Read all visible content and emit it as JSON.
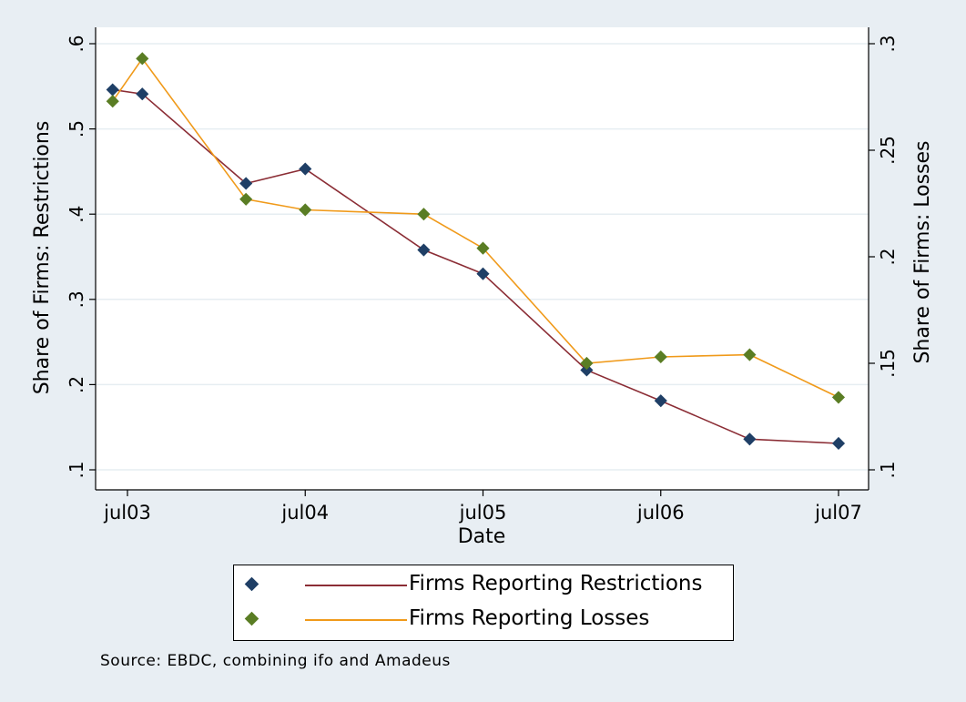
{
  "chart_data": {
    "type": "line",
    "xlabel": "Date",
    "ylabel_left": "Share of Firms: Restrictions",
    "ylabel_right": "Share of Firms: Losses",
    "x_ticks": [
      {
        "label": "jul03",
        "t": 0
      },
      {
        "label": "jul04",
        "t": 12
      },
      {
        "label": "jul05",
        "t": 24
      },
      {
        "label": "jul06",
        "t": 36
      },
      {
        "label": "jul07",
        "t": 48
      }
    ],
    "x_range": [
      0,
      48
    ],
    "y_left": {
      "range": [
        0.1,
        0.6
      ],
      "ticks": [
        ".1",
        ".2",
        ".3",
        ".4",
        ".5",
        ".6"
      ],
      "tick_values": [
        0.1,
        0.2,
        0.3,
        0.4,
        0.5,
        0.6
      ]
    },
    "y_right": {
      "range": [
        0.1,
        0.3
      ],
      "ticks": [
        ".1",
        ".15",
        ".2",
        ".25",
        ".3"
      ],
      "tick_values": [
        0.1,
        0.15,
        0.2,
        0.25,
        0.3
      ]
    },
    "grid": true,
    "series": [
      {
        "name": "Firms Reporting Restrictions",
        "axis": "left",
        "color": "#8b2d35",
        "marker_color": "#1f3f66",
        "x": [
          -1,
          1,
          8,
          12,
          20,
          24,
          31,
          36,
          42,
          48
        ],
        "y": [
          0.546,
          0.541,
          0.436,
          0.453,
          0.358,
          0.33,
          0.217,
          0.181,
          0.136,
          0.131
        ]
      },
      {
        "name": "Firms Reporting Losses",
        "axis": "right",
        "color": "#f09a1a",
        "marker_color": "#5a7d24",
        "x": [
          -1,
          1,
          8,
          12,
          20,
          24,
          31,
          36,
          42,
          48
        ],
        "y": [
          0.273,
          0.293,
          0.227,
          0.222,
          0.22,
          0.204,
          0.15,
          0.153,
          0.154,
          0.134
        ]
      }
    ]
  },
  "legend": {
    "placement": "bottom",
    "items": [
      {
        "label": "Firms Reporting Restrictions",
        "line_color": "#8b2d35",
        "marker_color": "#1f3f66"
      },
      {
        "label": "Firms Reporting Losses",
        "line_color": "#f09a1a",
        "marker_color": "#5a7d24"
      }
    ]
  },
  "source_note": "Source: EBDC, combining ifo and Amadeus"
}
